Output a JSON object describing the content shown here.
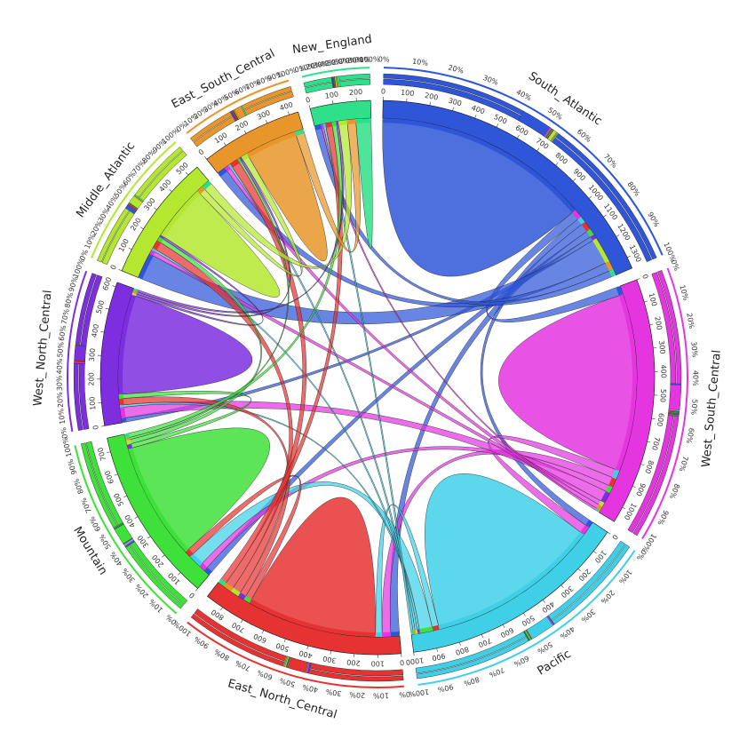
{
  "chart_data": {
    "type": "chord",
    "title": "",
    "regions": [
      {
        "name": "South_Atlantic",
        "color": "#2f56d8",
        "total": 1350
      },
      {
        "name": "West_South_Central",
        "color": "#e535e0",
        "total": 1070
      },
      {
        "name": "Pacific",
        "color": "#3fd0e8",
        "total": 1000
      },
      {
        "name": "East_North_Central",
        "color": "#e63232",
        "total": 880
      },
      {
        "name": "Mountain",
        "color": "#3ee03a",
        "total": 760
      },
      {
        "name": "West_North_Central",
        "color": "#7d2fe0",
        "total": 620
      },
      {
        "name": "Middle_Atlantic",
        "color": "#b4e830",
        "total": 550
      },
      {
        "name": "East_South_Central",
        "color": "#e8962a",
        "total": 440
      },
      {
        "name": "New_England",
        "color": "#2fe08a",
        "total": 260
      }
    ],
    "flows": [
      [
        1000,
        40,
        30,
        40,
        30,
        20,
        120,
        40,
        30
      ],
      [
        40,
        820,
        40,
        40,
        30,
        50,
        20,
        20,
        10
      ],
      [
        30,
        40,
        800,
        30,
        60,
        10,
        10,
        10,
        10
      ],
      [
        40,
        40,
        30,
        600,
        30,
        30,
        40,
        40,
        30
      ],
      [
        30,
        30,
        60,
        30,
        540,
        20,
        20,
        10,
        20
      ],
      [
        20,
        50,
        10,
        30,
        20,
        460,
        10,
        10,
        10
      ],
      [
        120,
        20,
        10,
        40,
        20,
        10,
        260,
        30,
        40
      ],
      [
        40,
        20,
        10,
        40,
        10,
        10,
        30,
        240,
        40
      ],
      [
        30,
        10,
        10,
        30,
        20,
        10,
        40,
        40,
        70
      ]
    ],
    "tick_step": 100,
    "pct_labels": [
      "0%",
      "10%",
      "20%",
      "30%",
      "40%",
      "50%",
      "60%",
      "70%",
      "80%",
      "90%",
      "100%"
    ]
  }
}
